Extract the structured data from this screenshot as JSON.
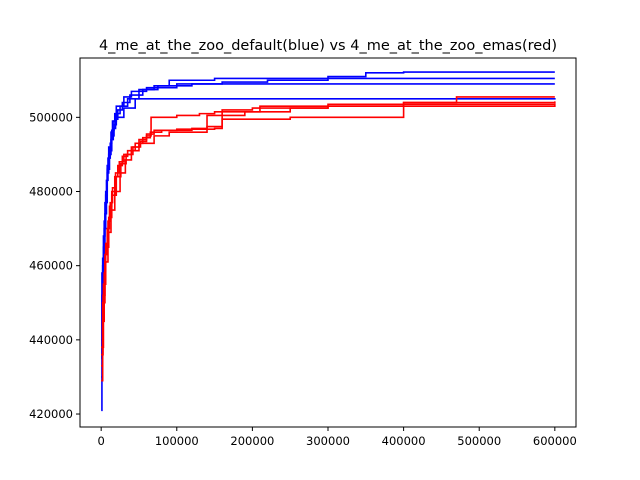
{
  "chart_data": {
    "type": "line",
    "title": "4_me_at_the_zoo_default(blue) vs 4_me_at_the_zoo_emas(red)",
    "xlabel": "",
    "ylabel": "",
    "xlim": [
      -28000,
      628000
    ],
    "ylim": [
      416500,
      516000
    ],
    "grid": false,
    "legend": "none",
    "x_ticks": [
      0,
      100000,
      200000,
      300000,
      400000,
      500000,
      600000
    ],
    "x_tick_labels": [
      "0",
      "100000",
      "200000",
      "300000",
      "400000",
      "500000",
      "600000"
    ],
    "y_ticks": [
      420000,
      440000,
      460000,
      480000,
      500000
    ],
    "y_tick_labels": [
      "420000",
      "440000",
      "460000",
      "480000",
      "500000"
    ],
    "series": [
      {
        "color": "#0000ff",
        "x": [
          0,
          1000,
          2000,
          4000,
          6000,
          8000,
          10000,
          13000,
          15000,
          18000,
          20000,
          30000,
          40000,
          60000,
          100000,
          160000,
          220000,
          300000,
          350000,
          400000,
          600000
        ],
        "y": [
          421000,
          452000,
          462000,
          472000,
          480000,
          487000,
          492000,
          496000,
          499000,
          501000,
          503000,
          505500,
          507000,
          508000,
          509000,
          509500,
          510000,
          511000,
          512000,
          512200,
          512200
        ]
      },
      {
        "color": "#0000ff",
        "x": [
          0,
          1500,
          3000,
          5000,
          7000,
          9000,
          12000,
          14000,
          17000,
          20000,
          25000,
          35000,
          50000,
          70000,
          90000,
          150000,
          250000,
          600000
        ],
        "y": [
          430000,
          455000,
          465000,
          474000,
          483000,
          489000,
          493000,
          496500,
          499000,
          501000,
          503000,
          505000,
          507500,
          508500,
          510000,
          510500,
          510500,
          510500
        ]
      },
      {
        "color": "#0000ff",
        "x": [
          0,
          1000,
          3000,
          5000,
          8000,
          10000,
          13000,
          16000,
          19000,
          22000,
          28000,
          38000,
          55000,
          75000,
          120000,
          200000,
          600000
        ],
        "y": [
          435000,
          458000,
          468000,
          477000,
          485000,
          490000,
          494000,
          497000,
          499500,
          502000,
          504000,
          506000,
          507500,
          508500,
          509000,
          509000,
          509000
        ]
      },
      {
        "color": "#0000ff",
        "x": [
          0,
          2000,
          4000,
          6000,
          8000,
          11000,
          14000,
          17000,
          20000,
          30000,
          45000,
          600000
        ],
        "y": [
          440000,
          460000,
          470000,
          479000,
          486000,
          491000,
          495000,
          498000,
          500000,
          502500,
          505000,
          505200
        ]
      },
      {
        "color": "#ff0000",
        "x": [
          0,
          2000,
          4000,
          6000,
          9000,
          12000,
          15000,
          19000,
          24000,
          30000,
          40000,
          50000,
          60000,
          70000,
          100000,
          150000,
          160000,
          200000,
          300000,
          400000,
          470000,
          600000
        ],
        "y": [
          429000,
          445000,
          458000,
          466000,
          472000,
          477000,
          481000,
          485000,
          488000,
          490000,
          492000,
          494000,
          495500,
          496500,
          496800,
          497000,
          502000,
          502500,
          503500,
          504000,
          505500,
          505500
        ]
      },
      {
        "color": "#ff0000",
        "x": [
          0,
          2500,
          5000,
          8000,
          11000,
          14000,
          18000,
          22000,
          28000,
          35000,
          45000,
          55000,
          65000,
          80000,
          120000,
          140000,
          190000,
          210000,
          400000,
          600000
        ],
        "y": [
          436000,
          452000,
          463000,
          470000,
          476000,
          480000,
          484000,
          487000,
          489500,
          491000,
          493000,
          494500,
          496000,
          496500,
          497000,
          500500,
          501500,
          503000,
          504000,
          504300
        ]
      },
      {
        "color": "#ff0000",
        "x": [
          0,
          3000,
          6000,
          10000,
          14000,
          20000,
          26000,
          33000,
          42000,
          52000,
          60000,
          66000,
          100000,
          130000,
          150000,
          250000,
          300000,
          600000
        ],
        "y": [
          438000,
          455000,
          465000,
          473000,
          479000,
          484000,
          487500,
          490000,
          492000,
          493500,
          495000,
          500000,
          500500,
          501000,
          501500,
          502500,
          503000,
          503800
        ]
      },
      {
        "color": "#ff0000",
        "x": [
          0,
          2000,
          5000,
          9000,
          13000,
          18000,
          25000,
          32000,
          40000,
          50000,
          70000,
          90000,
          140000,
          160000,
          250000,
          335000,
          400000,
          600000
        ],
        "y": [
          433000,
          450000,
          461000,
          469000,
          475000,
          480000,
          485000,
          488500,
          491000,
          493000,
          495000,
          496000,
          497500,
          499500,
          500000,
          500000,
          503500,
          503500
        ]
      }
    ]
  }
}
